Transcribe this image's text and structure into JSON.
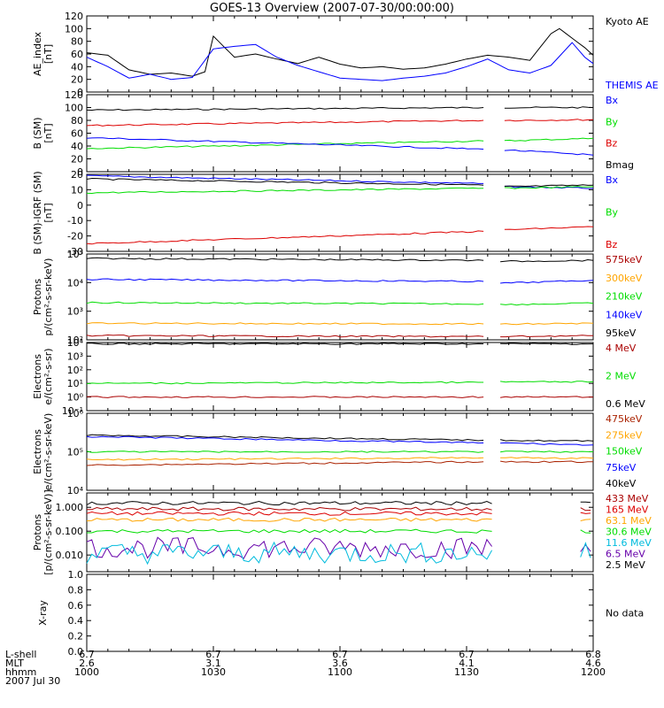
{
  "title": "GOES-13 Overview (2007-07-30/00:00:00)",
  "colors": {
    "black": "#000000",
    "blue": "#0000ff",
    "red": "#dd0000",
    "green": "#00dd00",
    "orange": "#ffa500",
    "darkred": "#aa0000",
    "yellow": "#eeee00",
    "cyan": "#00bbdd",
    "purple": "#6600aa",
    "brown": "#aa2200"
  },
  "footer": {
    "row_labels": [
      "L-shell",
      "MLT",
      "hhmm",
      "2007 Jul 30"
    ],
    "columns": [
      {
        "lshell": "6.7",
        "mlt": "2.6",
        "hhmm": "1000"
      },
      {
        "lshell": "6.7",
        "mlt": "3.1",
        "hhmm": "1030"
      },
      {
        "lshell": "6.7",
        "mlt": "3.6",
        "hhmm": "1100"
      },
      {
        "lshell": "6.7",
        "mlt": "4.1",
        "hhmm": "1130"
      },
      {
        "lshell": "6.8",
        "mlt": "4.6",
        "hhmm": "1200"
      }
    ]
  },
  "chart_data": [
    {
      "type": "line",
      "ylabel": "AE_index\n[nT]",
      "ylim": [
        0,
        120
      ],
      "ytick_labels": [
        "0",
        "20",
        "40",
        "60",
        "80",
        "100",
        "120"
      ],
      "legend": [
        "Kyoto AE",
        "THEMIS AE"
      ],
      "legend_colors": [
        "black",
        "blue"
      ],
      "series": [
        {
          "name": "Kyoto AE",
          "color": "black",
          "x": [
            1000,
            1005,
            1010,
            1015,
            1020,
            1025,
            1028,
            1030,
            1035,
            1040,
            1045,
            1050,
            1055,
            1100,
            1105,
            1110,
            1115,
            1120,
            1125,
            1130,
            1135,
            1140,
            1145,
            1150,
            1152,
            1155,
            1158,
            1200
          ],
          "y": [
            62,
            58,
            35,
            28,
            30,
            25,
            32,
            88,
            55,
            60,
            52,
            45,
            55,
            44,
            38,
            40,
            36,
            38,
            44,
            52,
            58,
            55,
            50,
            92,
            100,
            85,
            70,
            58
          ]
        },
        {
          "name": "THEMIS AE",
          "color": "blue",
          "x": [
            1000,
            1005,
            1010,
            1015,
            1020,
            1025,
            1030,
            1035,
            1040,
            1045,
            1050,
            1055,
            1100,
            1105,
            1110,
            1115,
            1120,
            1125,
            1130,
            1135,
            1140,
            1145,
            1150,
            1155,
            1158,
            1200
          ],
          "y": [
            55,
            40,
            22,
            28,
            20,
            23,
            68,
            72,
            75,
            55,
            42,
            32,
            22,
            20,
            18,
            22,
            25,
            30,
            40,
            52,
            35,
            30,
            42,
            78,
            55,
            45
          ]
        }
      ]
    },
    {
      "type": "line",
      "ylabel": "B (SM)\n[nT]",
      "ylim": [
        0,
        120
      ],
      "ytick_labels": [
        "0",
        "20",
        "40",
        "60",
        "80",
        "100",
        "120"
      ],
      "legend": [
        "Bx",
        "By",
        "Bz",
        "Bmag"
      ],
      "legend_colors": [
        "blue",
        "green",
        "red",
        "black"
      ],
      "gap": [
        1134,
        1139
      ],
      "series": [
        {
          "name": "Bmag",
          "color": "black",
          "x": [
            1000,
            1134,
            1139,
            1200
          ],
          "y": [
            96,
            100,
            100,
            100
          ]
        },
        {
          "name": "Bz",
          "color": "red",
          "x": [
            1000,
            1134,
            1139,
            1200
          ],
          "y": [
            72,
            80,
            80,
            81
          ]
        },
        {
          "name": "By",
          "color": "green",
          "x": [
            1000,
            1134,
            1139,
            1200
          ],
          "y": [
            36,
            48,
            48,
            52
          ]
        },
        {
          "name": "Bx",
          "color": "blue",
          "x": [
            1000,
            1134,
            1139,
            1200
          ],
          "y": [
            53,
            35,
            34,
            26
          ]
        }
      ]
    },
    {
      "type": "line",
      "ylabel": "B (SM)-IGRF (SM)\n[nT]",
      "ylim": [
        -30,
        20
      ],
      "ytick_labels": [
        "-30",
        "-20",
        "-10",
        "0",
        "10",
        "20"
      ],
      "legend": [
        "Bx",
        "By",
        "Bz"
      ],
      "legend_colors": [
        "blue",
        "green",
        "red"
      ],
      "gap": [
        1134,
        1139
      ],
      "series": [
        {
          "name": "Bx",
          "color": "blue",
          "x": [
            1000,
            1134,
            1139,
            1200
          ],
          "y": [
            19,
            14,
            12,
            11
          ]
        },
        {
          "name": "black",
          "color": "black",
          "x": [
            1000,
            1134,
            1139,
            1200
          ],
          "y": [
            17,
            13,
            12,
            13
          ]
        },
        {
          "name": "By",
          "color": "green",
          "x": [
            1000,
            1134,
            1139,
            1200
          ],
          "y": [
            8,
            11,
            11,
            12
          ]
        },
        {
          "name": "Bz",
          "color": "red",
          "x": [
            1000,
            1134,
            1139,
            1200
          ],
          "y": [
            -25,
            -17,
            -16,
            -14
          ]
        }
      ]
    },
    {
      "type": "line",
      "scale": "log",
      "ylabel": "Protons\np/(cm²-s-sr-keV)",
      "ylim": [
        100,
        100000
      ],
      "ytick_labels": [
        "10²",
        "10³",
        "10⁴",
        "10⁵"
      ],
      "legend": [
        "575keV",
        "300keV",
        "210keV",
        "140keV",
        "95keV"
      ],
      "legend_colors": [
        "darkred",
        "orange",
        "green",
        "blue",
        "black"
      ],
      "gap": [
        1134,
        1138
      ],
      "series": [
        {
          "name": "black",
          "color": "black",
          "x": [
            1000,
            1134,
            1138,
            1200
          ],
          "y": [
            70000,
            60000,
            55000,
            60000
          ]
        },
        {
          "name": "blue",
          "color": "blue",
          "x": [
            1000,
            1134,
            1138,
            1200
          ],
          "y": [
            13000,
            11000,
            9500,
            12000
          ]
        },
        {
          "name": "green",
          "color": "green",
          "x": [
            1000,
            1134,
            1138,
            1200
          ],
          "y": [
            2000,
            1800,
            1700,
            1900
          ]
        },
        {
          "name": "orange",
          "color": "orange",
          "x": [
            1000,
            1134,
            1138,
            1200
          ],
          "y": [
            380,
            360,
            350,
            380
          ]
        },
        {
          "name": "darkred",
          "color": "darkred",
          "x": [
            1000,
            1134,
            1138,
            1200
          ],
          "y": [
            140,
            130,
            130,
            140
          ]
        }
      ]
    },
    {
      "type": "line",
      "scale": "log",
      "ylabel": "Electrons\ne/(cm²-s-sr)",
      "ylim": [
        0.1,
        10000
      ],
      "ytick_labels": [
        "10⁻¹",
        "10⁰",
        "10¹",
        "10²",
        "10³",
        "10⁴"
      ],
      "legend": [
        "4 MeV",
        "2 MeV",
        "0.6 MeV"
      ],
      "legend_colors": [
        "darkred",
        "green",
        "black"
      ],
      "gap": [
        1134,
        1138
      ],
      "series": [
        {
          "name": "black",
          "color": "black",
          "x": [
            1000,
            1134,
            1138,
            1200
          ],
          "y": [
            8000,
            8000,
            8000,
            8000
          ]
        },
        {
          "name": "green",
          "color": "green",
          "x": [
            1000,
            1134,
            1138,
            1200
          ],
          "y": [
            10,
            12,
            13,
            13
          ]
        },
        {
          "name": "darkred",
          "color": "darkred",
          "x": [
            1000,
            1134,
            1138,
            1200
          ],
          "y": [
            1,
            1,
            1,
            1
          ]
        }
      ]
    },
    {
      "type": "line",
      "scale": "log",
      "ylabel": "Electrons\ne/(cm²-s-sr-keV)",
      "ylim": [
        10000,
        1000000
      ],
      "ytick_labels": [
        "10⁴",
        "10⁵",
        "10⁶"
      ],
      "legend": [
        "475keV",
        "275keV",
        "150keV",
        "75keV",
        "40keV"
      ],
      "legend_colors": [
        "brown",
        "orange",
        "green",
        "blue",
        "black"
      ],
      "gap": [
        1134,
        1138
      ],
      "series": [
        {
          "name": "black",
          "color": "black",
          "x": [
            1000,
            1134,
            1138,
            1200
          ],
          "y": [
            270000,
            200000,
            200000,
            190000
          ]
        },
        {
          "name": "blue",
          "color": "blue",
          "x": [
            1000,
            1134,
            1138,
            1200
          ],
          "y": [
            250000,
            170000,
            170000,
            150000
          ]
        },
        {
          "name": "green",
          "color": "green",
          "x": [
            1000,
            1134,
            1138,
            1200
          ],
          "y": [
            100000,
            100000,
            100000,
            100000
          ]
        },
        {
          "name": "orange",
          "color": "orange",
          "x": [
            1000,
            1134,
            1138,
            1200
          ],
          "y": [
            62000,
            70000,
            70000,
            68000
          ]
        },
        {
          "name": "brown",
          "color": "brown",
          "x": [
            1000,
            1134,
            1138,
            1200
          ],
          "y": [
            45000,
            55000,
            55000,
            55000
          ]
        }
      ]
    },
    {
      "type": "line",
      "scale": "log",
      "ylabel": "Protons\n[p/(cm²-s-sr-keV)]",
      "ylim": [
        0.002,
        4
      ],
      "ytick_labels": [
        "0.010",
        "0.100",
        "1.000"
      ],
      "ytick_values": [
        0.01,
        0.1,
        1
      ],
      "legend": [
        "433 MeV",
        "165 MeV",
        "63.1 MeV",
        "30.6 MeV",
        "11.6 MeV",
        "6.5 MeV",
        "2.5 MeV"
      ],
      "legend_colors": [
        "darkred",
        "red",
        "orange",
        "green",
        "cyan",
        "purple",
        "black"
      ],
      "gap": [
        1134,
        1138
      ],
      "series": [
        {
          "name": "black",
          "color": "black",
          "base": 1.5
        },
        {
          "name": "darkred",
          "color": "darkred",
          "base": 0.85
        },
        {
          "name": "red",
          "color": "red",
          "base": 0.55
        },
        {
          "name": "orange",
          "color": "orange",
          "base": 0.3
        },
        {
          "name": "green",
          "color": "green",
          "base": 0.1
        },
        {
          "name": "purple",
          "color": "purple",
          "base": 0.02
        },
        {
          "name": "cyan",
          "color": "cyan",
          "base": 0.012
        }
      ]
    },
    {
      "type": "line",
      "ylabel": "X-ray",
      "ylim": [
        0,
        1
      ],
      "ytick_labels": [
        "0.0",
        "0.2",
        "0.4",
        "0.6",
        "0.8",
        "1.0"
      ],
      "legend": [
        "No data"
      ],
      "legend_colors": [
        "black"
      ],
      "series": []
    }
  ]
}
